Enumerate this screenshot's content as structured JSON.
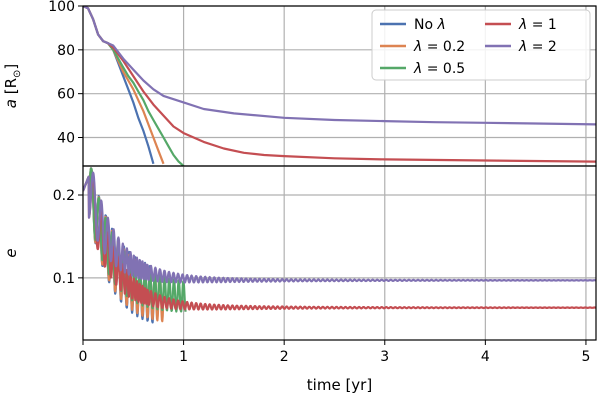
{
  "chart_data": {
    "type": "line",
    "xlabel": "time [yr]",
    "x_ticks": [
      "0",
      "1",
      "2",
      "3",
      "4",
      "5"
    ],
    "xlim": [
      0,
      5.1
    ],
    "grid": true,
    "legend_placement": "top-right",
    "panels": [
      {
        "ylabel_html": "<tspan font-style='italic'>a</tspan> [R<tspan font-size='10' dy='4'>⊙</tspan><tspan dy='-4'>]</tspan>",
        "ylabel": "a [R⊙]",
        "ylim": [
          27,
          100
        ],
        "y_ticks": [
          40,
          60,
          80,
          100
        ],
        "y_tick_labels": [
          "40",
          "60",
          "80",
          "100"
        ],
        "series": [
          {
            "name": "No λ",
            "color": "#4C72B0",
            "key": "nolam",
            "points": [
              [
                0,
                100
              ],
              [
                0.05,
                99
              ],
              [
                0.1,
                94
              ],
              [
                0.15,
                87
              ],
              [
                0.2,
                84
              ],
              [
                0.25,
                83
              ],
              [
                0.3,
                80
              ],
              [
                0.35,
                74
              ],
              [
                0.4,
                68
              ],
              [
                0.45,
                62
              ],
              [
                0.5,
                56
              ],
              [
                0.55,
                49
              ],
              [
                0.6,
                43
              ],
              [
                0.65,
                36
              ],
              [
                0.7,
                28
              ]
            ]
          },
          {
            "name": "λ = 0.2",
            "color": "#DD8452",
            "key": "lam02",
            "points": [
              [
                0,
                100
              ],
              [
                0.05,
                99
              ],
              [
                0.1,
                94
              ],
              [
                0.15,
                87
              ],
              [
                0.2,
                84
              ],
              [
                0.25,
                83
              ],
              [
                0.3,
                80
              ],
              [
                0.35,
                75
              ],
              [
                0.4,
                70
              ],
              [
                0.45,
                66
              ],
              [
                0.5,
                62
              ],
              [
                0.55,
                57
              ],
              [
                0.6,
                52
              ],
              [
                0.65,
                46
              ],
              [
                0.7,
                40
              ],
              [
                0.75,
                34
              ],
              [
                0.8,
                28
              ]
            ]
          },
          {
            "name": "λ = 0.5",
            "color": "#55A868",
            "key": "lam05",
            "points": [
              [
                0,
                100
              ],
              [
                0.05,
                99
              ],
              [
                0.1,
                94
              ],
              [
                0.15,
                87
              ],
              [
                0.2,
                84
              ],
              [
                0.25,
                83
              ],
              [
                0.3,
                80
              ],
              [
                0.35,
                76
              ],
              [
                0.4,
                72
              ],
              [
                0.45,
                68
              ],
              [
                0.5,
                65
              ],
              [
                0.55,
                61
              ],
              [
                0.6,
                57
              ],
              [
                0.65,
                52
              ],
              [
                0.7,
                48
              ],
              [
                0.75,
                44
              ],
              [
                0.8,
                40
              ],
              [
                0.85,
                36
              ],
              [
                0.9,
                32
              ],
              [
                0.95,
                29
              ],
              [
                1.0,
                27
              ]
            ]
          },
          {
            "name": "λ = 1",
            "color": "#C44E52",
            "key": "lam1",
            "points": [
              [
                0,
                100
              ],
              [
                0.05,
                99
              ],
              [
                0.1,
                94
              ],
              [
                0.15,
                87
              ],
              [
                0.2,
                84
              ],
              [
                0.25,
                83
              ],
              [
                0.3,
                81
              ],
              [
                0.4,
                75
              ],
              [
                0.5,
                68
              ],
              [
                0.6,
                61
              ],
              [
                0.7,
                55
              ],
              [
                0.8,
                50
              ],
              [
                0.9,
                45
              ],
              [
                1.0,
                42
              ],
              [
                1.2,
                38
              ],
              [
                1.4,
                35
              ],
              [
                1.6,
                33
              ],
              [
                1.8,
                32
              ],
              [
                2.0,
                31.5
              ],
              [
                2.5,
                30.5
              ],
              [
                3.0,
                30
              ],
              [
                4.0,
                29.5
              ],
              [
                5.1,
                29
              ]
            ]
          },
          {
            "name": "λ = 2",
            "color": "#8172B3",
            "key": "lam2",
            "points": [
              [
                0,
                100
              ],
              [
                0.05,
                99
              ],
              [
                0.1,
                94
              ],
              [
                0.15,
                87
              ],
              [
                0.2,
                84
              ],
              [
                0.25,
                83
              ],
              [
                0.3,
                82
              ],
              [
                0.4,
                76
              ],
              [
                0.5,
                71
              ],
              [
                0.6,
                66
              ],
              [
                0.7,
                62
              ],
              [
                0.8,
                59
              ],
              [
                1.0,
                56
              ],
              [
                1.2,
                53
              ],
              [
                1.5,
                51
              ],
              [
                2.0,
                49
              ],
              [
                2.5,
                48
              ],
              [
                3.0,
                47.5
              ],
              [
                3.5,
                47
              ],
              [
                4.0,
                46.7
              ],
              [
                4.5,
                46.4
              ],
              [
                5.1,
                46
              ]
            ]
          }
        ]
      },
      {
        "ylabel": "e",
        "ylim": [
          0.025,
          0.235
        ],
        "y_ticks": [
          0.1,
          0.2
        ],
        "y_tick_labels": [
          "0.1",
          "0.2"
        ],
        "series": [
          {
            "name": "No λ",
            "color": "#4C72B0",
            "key": "nolam",
            "t_end": 0.7
          },
          {
            "name": "λ = 0.2",
            "color": "#DD8452",
            "key": "lam02",
            "t_end": 0.8
          },
          {
            "name": "λ = 0.5",
            "color": "#55A868",
            "key": "lam05",
            "t_end": 1.02
          },
          {
            "name": "λ = 1",
            "color": "#C44E52",
            "key": "lam1",
            "t_end": 5.1
          },
          {
            "name": "λ = 2",
            "color": "#8172B3",
            "key": "lam2",
            "t_end": 5.1
          }
        ]
      }
    ],
    "legend": {
      "placement": "top-right",
      "entries": [
        {
          "label_html": "No <tspan font-style='italic'>λ</tspan>",
          "label": "No λ",
          "color": "#4C72B0"
        },
        {
          "label_html": "<tspan font-style='italic'>λ</tspan> = 0.2",
          "label": "λ = 0.2",
          "color": "#DD8452"
        },
        {
          "label_html": "<tspan font-style='italic'>λ</tspan> = 0.5",
          "label": "λ = 0.5",
          "color": "#55A868"
        },
        {
          "label_html": "<tspan font-style='italic'>λ</tspan> = 1",
          "label": "λ = 1",
          "color": "#C44E52"
        },
        {
          "label_html": "<tspan font-style='italic'>λ</tspan> = 2",
          "label": "λ = 2",
          "color": "#8172B3"
        }
      ]
    }
  }
}
